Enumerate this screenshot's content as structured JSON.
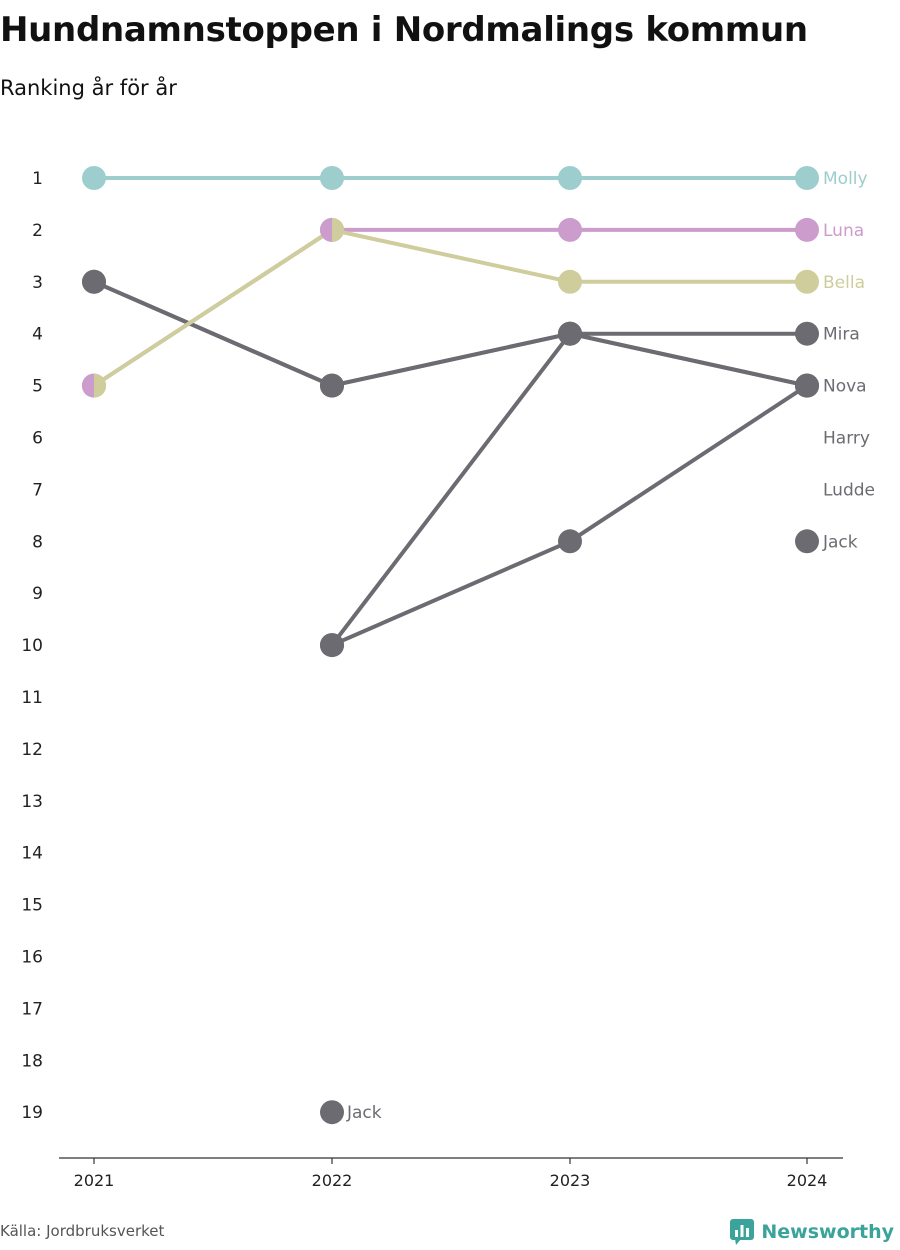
{
  "header": {
    "title": "Hundnamnstoppen i Nordmalings kommun",
    "subtitle": "Ranking år för år"
  },
  "footer": {
    "source": "Källa: Jordbruksverket",
    "brand": "Newsworthy",
    "brand_icon": "bar-chart-speech-bubble-icon"
  },
  "colors": {
    "Molly": "#9dcdcd",
    "Luna": "#cb9ccc",
    "Bella": "#cecd9b",
    "other": "#6c6b72",
    "brand": "#3aa39a"
  },
  "chart_data": {
    "type": "line",
    "x": [
      "2021",
      "2022",
      "2023",
      "2024"
    ],
    "ylim": [
      1,
      19
    ],
    "y_reversed": true,
    "y_ticks": [
      1,
      2,
      3,
      4,
      5,
      6,
      7,
      8,
      9,
      10,
      11,
      12,
      13,
      14,
      15,
      16,
      17,
      18,
      19
    ],
    "series": [
      {
        "name": "Molly",
        "values": [
          1,
          1,
          1,
          1
        ]
      },
      {
        "name": "Luna",
        "values": [
          5,
          2,
          2,
          2
        ]
      },
      {
        "name": "Bella",
        "values": [
          5,
          2,
          3,
          3
        ]
      },
      {
        "name": "Mira",
        "values": [
          3,
          5,
          4,
          4
        ]
      },
      {
        "name": "Nova",
        "values": [
          null,
          10,
          4,
          5
        ]
      },
      {
        "name": "Harry",
        "values": [
          null,
          10,
          8,
          5
        ]
      },
      {
        "name": "Ludde",
        "values": [
          3,
          5,
          4,
          5
        ]
      },
      {
        "name": "Jack",
        "values": [
          null,
          19,
          null,
          8
        ]
      }
    ],
    "end_labels": [
      "Molly",
      "Luna",
      "Bella",
      "Mira",
      "Nova",
      "Harry",
      "Ludde",
      "Jack"
    ],
    "annotations": [
      {
        "text": "Jack",
        "x": "2022",
        "y": 19
      }
    ]
  }
}
